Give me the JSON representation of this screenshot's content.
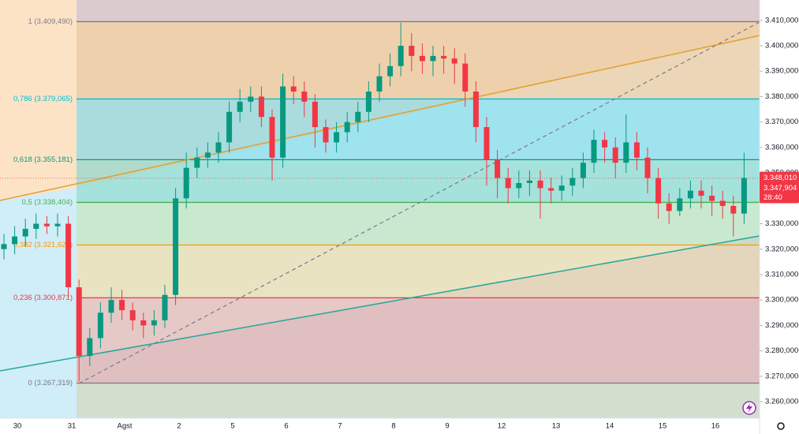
{
  "chart_data": {
    "type": "candlestick",
    "ylim": [
      3.2535,
      3.418
    ],
    "yticks": [
      {
        "value": 3.41,
        "label": "3.410,000"
      },
      {
        "value": 3.4,
        "label": "3.400,000"
      },
      {
        "value": 3.39,
        "label": "3.390,000"
      },
      {
        "value": 3.38,
        "label": "3.380,000"
      },
      {
        "value": 3.37,
        "label": "3.370,000"
      },
      {
        "value": 3.36,
        "label": "3.360,000"
      },
      {
        "value": 3.35,
        "label": "3.350,000"
      },
      {
        "value": 3.34,
        "label": "3.340,000"
      },
      {
        "value": 3.33,
        "label": "3.330,000"
      },
      {
        "value": 3.32,
        "label": "3.320,000"
      },
      {
        "value": 3.31,
        "label": "3.310,000"
      },
      {
        "value": 3.3,
        "label": "3.300,000"
      },
      {
        "value": 3.29,
        "label": "3.290,000"
      },
      {
        "value": 3.28,
        "label": "3.280,000"
      },
      {
        "value": 3.27,
        "label": "3.270,000"
      },
      {
        "value": 3.26,
        "label": "3.260,000"
      }
    ],
    "x_labels": [
      "30",
      "31",
      "Agst",
      "2",
      "5",
      "6",
      "7",
      "8",
      "9",
      "12",
      "13",
      "14",
      "15",
      "16"
    ],
    "up_color": "#089981",
    "down_color": "#f23645",
    "fib_levels": [
      {
        "label": "1 (3.409,490)",
        "value": 3.40949,
        "color": "#787b86",
        "zone": "#ecd6b8"
      },
      {
        "label": "0,786 (3.379,065)",
        "value": 3.379065,
        "color": "#00bcd4",
        "zone": "#9fe3ef"
      },
      {
        "label": "0,618 (3.355,181)",
        "value": 3.355181,
        "color": "#089981",
        "zone": "#a5e2dc"
      },
      {
        "label": "0,5 (3.338,404)",
        "value": 3.338404,
        "color": "#4caf50",
        "zone": "#c8e8d0"
      },
      {
        "label": "0,382 (3.321,628)",
        "value": 3.321628,
        "color": "#ff9800",
        "zone": "#e9e3c2"
      },
      {
        "label": "0,236 (3.300,871)",
        "value": 3.300871,
        "color": "#f23645",
        "zone": "#e4c9c6"
      },
      {
        "label": "0 (3.267,319)",
        "value": 3.267319,
        "color": "#787b86",
        "zone": "#d5ecd6"
      }
    ],
    "open": [
      3.32,
      3.322,
      3.325,
      3.328,
      3.33,
      3.329,
      3.33,
      3.305,
      3.278,
      3.285,
      3.295,
      3.3,
      3.296,
      3.292,
      3.29,
      3.292,
      3.302,
      3.34,
      3.352,
      3.356,
      3.358,
      3.362,
      3.374,
      3.378,
      3.38,
      3.372,
      3.356,
      3.384,
      3.382,
      3.378,
      3.368,
      3.362,
      3.366,
      3.37,
      3.374,
      3.382,
      3.388,
      3.392,
      3.4,
      3.396,
      3.394,
      3.396,
      3.395,
      3.393,
      3.382,
      3.368,
      3.355,
      3.348,
      3.344,
      3.346,
      3.347,
      3.344,
      3.343,
      3.345,
      3.348,
      3.354,
      3.363,
      3.36,
      3.354,
      3.362,
      3.356,
      3.348,
      3.338,
      3.335,
      3.34,
      3.343,
      3.341,
      3.339,
      3.337,
      3.334
    ],
    "high": [
      3.326,
      3.329,
      3.332,
      3.334,
      3.333,
      3.334,
      3.333,
      3.308,
      3.289,
      3.299,
      3.305,
      3.304,
      3.299,
      3.295,
      3.296,
      3.306,
      3.344,
      3.358,
      3.36,
      3.362,
      3.366,
      3.378,
      3.383,
      3.384,
      3.384,
      3.375,
      3.389,
      3.388,
      3.386,
      3.381,
      3.371,
      3.37,
      3.374,
      3.378,
      3.386,
      3.393,
      3.397,
      3.409,
      3.405,
      3.401,
      3.4,
      3.4,
      3.399,
      3.397,
      3.386,
      3.372,
      3.359,
      3.352,
      3.351,
      3.351,
      3.351,
      3.348,
      3.349,
      3.352,
      3.358,
      3.367,
      3.366,
      3.364,
      3.373,
      3.366,
      3.36,
      3.352,
      3.342,
      3.344,
      3.347,
      3.347,
      3.345,
      3.343,
      3.341,
      3.358
    ],
    "low": [
      3.316,
      3.318,
      3.321,
      3.324,
      3.326,
      3.325,
      3.301,
      3.268,
      3.274,
      3.281,
      3.291,
      3.292,
      3.288,
      3.285,
      3.286,
      3.289,
      3.298,
      3.336,
      3.348,
      3.352,
      3.354,
      3.358,
      3.37,
      3.374,
      3.368,
      3.347,
      3.352,
      3.377,
      3.372,
      3.36,
      3.358,
      3.358,
      3.362,
      3.366,
      3.37,
      3.378,
      3.384,
      3.388,
      3.39,
      3.389,
      3.388,
      3.389,
      3.385,
      3.376,
      3.362,
      3.345,
      3.34,
      3.338,
      3.34,
      3.341,
      3.332,
      3.338,
      3.339,
      3.341,
      3.344,
      3.35,
      3.354,
      3.348,
      3.35,
      3.351,
      3.342,
      3.332,
      3.33,
      3.333,
      3.336,
      3.336,
      3.333,
      3.332,
      3.325,
      3.33
    ],
    "close": [
      3.322,
      3.325,
      3.328,
      3.33,
      3.329,
      3.33,
      3.305,
      3.278,
      3.285,
      3.295,
      3.3,
      3.296,
      3.292,
      3.29,
      3.292,
      3.302,
      3.34,
      3.352,
      3.356,
      3.358,
      3.362,
      3.374,
      3.378,
      3.38,
      3.372,
      3.356,
      3.384,
      3.382,
      3.378,
      3.368,
      3.362,
      3.366,
      3.37,
      3.374,
      3.382,
      3.388,
      3.392,
      3.4,
      3.396,
      3.394,
      3.396,
      3.395,
      3.393,
      3.382,
      3.368,
      3.355,
      3.348,
      3.344,
      3.346,
      3.347,
      3.344,
      3.343,
      3.345,
      3.348,
      3.354,
      3.363,
      3.36,
      3.354,
      3.362,
      3.356,
      3.348,
      3.338,
      3.335,
      3.34,
      3.343,
      3.341,
      3.339,
      3.337,
      3.334,
      3.348
    ],
    "price_tag": {
      "bid": {
        "value": 3.34801,
        "label": "3.348,010"
      },
      "last": {
        "value": 3.347904,
        "label": "3.347,904"
      },
      "countdown": "28:40"
    }
  }
}
